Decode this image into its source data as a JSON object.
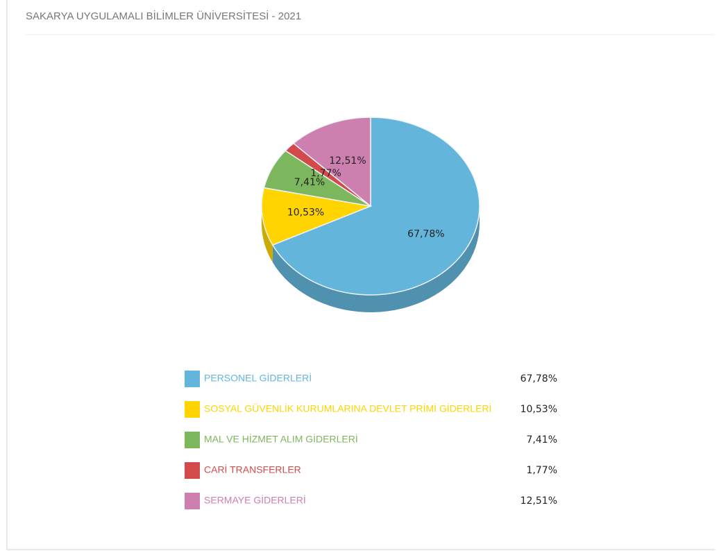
{
  "chart_data": {
    "type": "pie",
    "title": "SAKARYA UYGULAMALI BİLİMLER ÜNİVERSİTESİ - 2021",
    "categories": [
      "PERSONEL GİDERLERİ",
      "SOSYAL GÜVENLİK KURUMLARINA DEVLET PRİMİ GİDERLERİ",
      "MAL VE HİZMET ALIM GİDERLERİ",
      "CARİ TRANSFERLER",
      "SERMAYE GİDERLERİ"
    ],
    "values": [
      67.78,
      10.53,
      7.41,
      1.77,
      12.51
    ],
    "value_labels": [
      "67,78%",
      "10,53%",
      "7,41%",
      "1,77%",
      "12,51%"
    ],
    "colors": [
      "#64b5dc",
      "#ffd400",
      "#7cb65d",
      "#d34a4a",
      "#cd7fb0"
    ],
    "legend": "bottom"
  }
}
